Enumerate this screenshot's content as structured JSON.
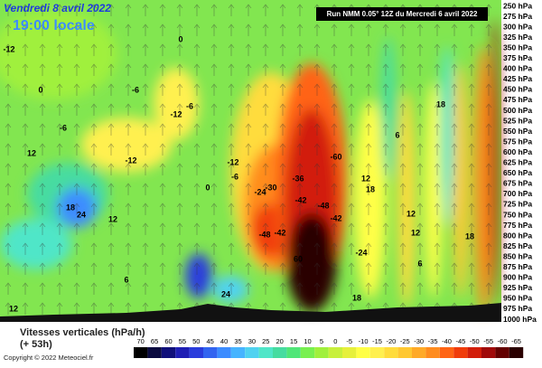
{
  "header": {
    "date": "Vendredi 8 avril 2022",
    "time": "19:00 locale"
  },
  "run": "Run NMM 0.05° 12Z du Mercredi 6 avril 2022",
  "pressure_levels": [
    "250 hPa",
    "275 hPa",
    "300 hPa",
    "325 hPa",
    "350 hPa",
    "375 hPa",
    "400 hPa",
    "425 hPa",
    "450 hPa",
    "475 hPa",
    "500 hPa",
    "525 hPa",
    "550 hPa",
    "575 hPa",
    "600 hPa",
    "625 hPa",
    "650 hPa",
    "675 hPa",
    "700 hPa",
    "725 hPa",
    "750 hPa",
    "775 hPa",
    "800 hPa",
    "825 hPa",
    "850 hPa",
    "875 hPa",
    "900 hPa",
    "925 hPa",
    "950 hPa",
    "975 hPa",
    "1000 hPa"
  ],
  "field_labels": [
    "0",
    "0",
    "-6",
    "-12",
    "-6",
    "-12",
    "12",
    "-6",
    "-12",
    "24",
    "18",
    "12",
    "6",
    "0",
    "-6",
    "-12",
    "-30",
    "-24",
    "-36",
    "-42",
    "-48",
    "-42",
    "-60",
    "-48",
    "-42",
    "60",
    "-24",
    "12",
    "18",
    "6",
    "18",
    "12",
    "12",
    "18",
    "6",
    "18",
    "24",
    "12"
  ],
  "legend": {
    "title": "Vitesses verticales (hPa/h)",
    "subtitle": "(+ 53h)",
    "scale": [
      70,
      65,
      60,
      55,
      50,
      45,
      40,
      35,
      30,
      25,
      20,
      15,
      10,
      5,
      0,
      -5,
      -10,
      -15,
      -20,
      -25,
      -30,
      -35,
      -40,
      -45,
      -50,
      -55,
      -60,
      -65
    ]
  },
  "copyright": "Copyright © 2022 Meteociel.fr"
}
